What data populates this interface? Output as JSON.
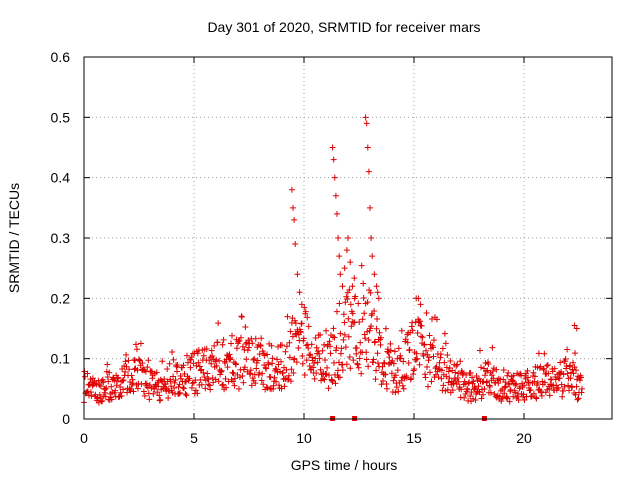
{
  "chart_data": {
    "type": "scatter",
    "title": "Day 301 of 2020, SRMTID for receiver mars",
    "xlabel": "GPS time / hours",
    "ylabel": "SRMTID / TECUs",
    "xlim": [
      0,
      24
    ],
    "ylim": [
      0,
      0.6
    ],
    "xticks": [
      0,
      5,
      10,
      15,
      20
    ],
    "xtick_labels": [
      "0",
      "5",
      "10",
      "15",
      "20"
    ],
    "yticks": [
      0,
      0.1,
      0.2,
      0.3,
      0.4,
      0.5,
      0.6
    ],
    "ytick_labels": [
      "0",
      "0.1",
      "0.2",
      "0.3",
      "0.4",
      "0.5",
      "0.6"
    ],
    "grid": true,
    "marker": "plus",
    "color": "#e00000",
    "series": [
      {
        "name": "SRMTID",
        "profile_x": [
          0,
          0.5,
          1,
          1.5,
          2,
          2.5,
          3,
          3.5,
          4,
          4.5,
          5,
          5.5,
          6,
          6.5,
          7,
          7.5,
          8,
          8.5,
          9,
          9.5,
          10,
          10.5,
          11,
          11.5,
          12,
          12.5,
          13,
          13.5,
          14,
          14.5,
          15,
          15.5,
          16,
          16.5,
          17,
          17.5,
          18,
          18.5,
          19,
          19.5,
          20,
          20.5,
          21,
          21.5,
          22,
          22.5
        ],
        "profile_y": [
          0.05,
          0.045,
          0.05,
          0.06,
          0.075,
          0.07,
          0.055,
          0.05,
          0.06,
          0.065,
          0.075,
          0.08,
          0.085,
          0.09,
          0.09,
          0.095,
          0.09,
          0.085,
          0.085,
          0.12,
          0.13,
          0.1,
          0.085,
          0.11,
          0.15,
          0.13,
          0.15,
          0.09,
          0.075,
          0.08,
          0.12,
          0.1,
          0.09,
          0.08,
          0.06,
          0.05,
          0.06,
          0.065,
          0.05,
          0.05,
          0.055,
          0.06,
          0.06,
          0.06,
          0.075,
          0.05
        ],
        "spikes": [
          {
            "x": 9.45,
            "y": 0.38
          },
          {
            "x": 9.5,
            "y": 0.35
          },
          {
            "x": 9.55,
            "y": 0.33
          },
          {
            "x": 9.6,
            "y": 0.29
          },
          {
            "x": 9.7,
            "y": 0.24
          },
          {
            "x": 9.8,
            "y": 0.21
          },
          {
            "x": 9.9,
            "y": 0.19
          },
          {
            "x": 11.3,
            "y": 0.45
          },
          {
            "x": 11.35,
            "y": 0.43
          },
          {
            "x": 11.4,
            "y": 0.4
          },
          {
            "x": 11.45,
            "y": 0.37
          },
          {
            "x": 11.5,
            "y": 0.34
          },
          {
            "x": 11.55,
            "y": 0.3
          },
          {
            "x": 11.6,
            "y": 0.27
          },
          {
            "x": 11.65,
            "y": 0.24
          },
          {
            "x": 11.75,
            "y": 0.22
          },
          {
            "x": 11.85,
            "y": 0.25
          },
          {
            "x": 11.95,
            "y": 0.28
          },
          {
            "x": 12.0,
            "y": 0.3
          },
          {
            "x": 12.1,
            "y": 0.26
          },
          {
            "x": 12.2,
            "y": 0.22
          },
          {
            "x": 12.3,
            "y": 0.2
          },
          {
            "x": 12.8,
            "y": 0.5
          },
          {
            "x": 12.85,
            "y": 0.49
          },
          {
            "x": 12.9,
            "y": 0.45
          },
          {
            "x": 12.95,
            "y": 0.41
          },
          {
            "x": 13.0,
            "y": 0.35
          },
          {
            "x": 13.05,
            "y": 0.3
          },
          {
            "x": 13.1,
            "y": 0.27
          },
          {
            "x": 13.2,
            "y": 0.24
          },
          {
            "x": 13.3,
            "y": 0.22
          },
          {
            "x": 13.35,
            "y": 0.21
          },
          {
            "x": 13.4,
            "y": 0.2
          },
          {
            "x": 15.1,
            "y": 0.2
          },
          {
            "x": 15.2,
            "y": 0.2
          },
          {
            "x": 15.3,
            "y": 0.19
          },
          {
            "x": 22.3,
            "y": 0.155
          },
          {
            "x": 22.4,
            "y": 0.15
          }
        ],
        "zero_markers": [
          11.3,
          12.3,
          18.2
        ]
      }
    ]
  }
}
